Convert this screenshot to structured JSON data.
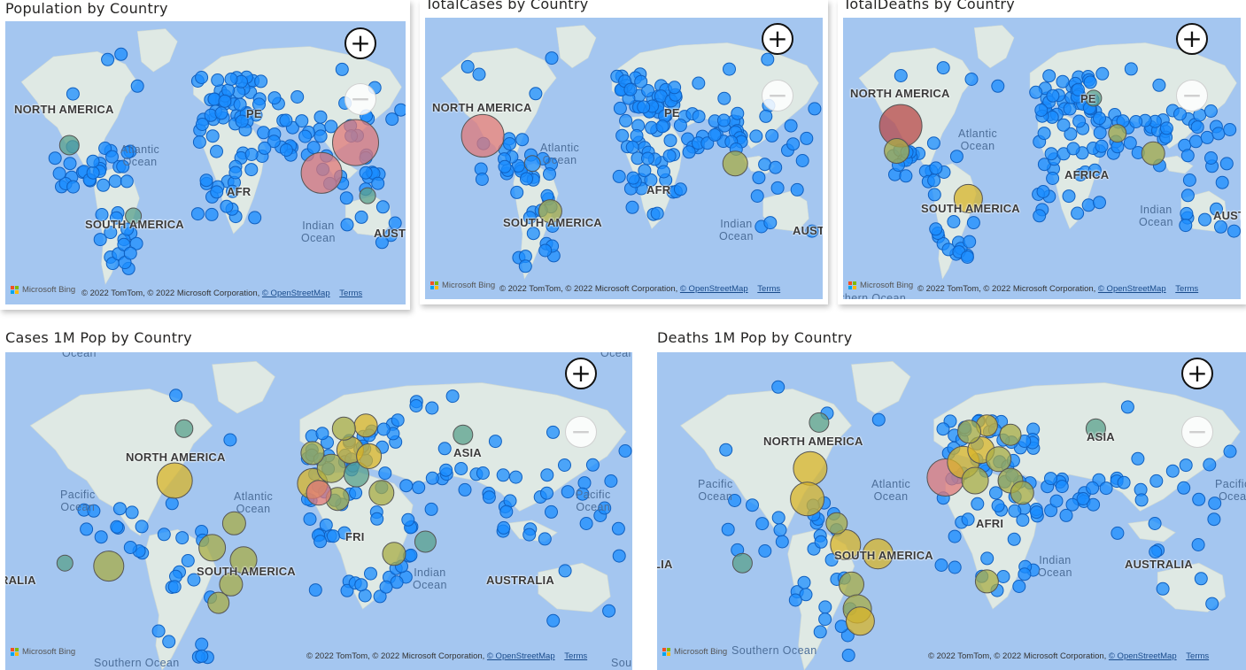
{
  "attribution": {
    "bing": "Microsoft Bing",
    "copyright": "© 2022 TomTom, © 2022 Microsoft Corporation,",
    "osm": "© OpenStreetMap",
    "terms": "Terms"
  },
  "colors": {
    "blue": "#1a8cff",
    "teal": "#5aa08c",
    "olive": "#a8ac46",
    "yellow": "#d8b428",
    "red": "#e07878",
    "darkred": "#b84848",
    "land": "#dfe9e4",
    "water": "#a4c6f0"
  },
  "icons": {
    "zoom_in": "plus-icon",
    "zoom_out": "minus-icon",
    "logo": "microsoft-logo-icon"
  },
  "zoom": {
    "in": "+",
    "out": "−"
  },
  "visuals": [
    {
      "key": "population",
      "title": "Population by Country",
      "labels": {
        "na": "NORTH AMERICA",
        "sa": "SOUTH AMERICA",
        "af": "AFR",
        "eu": "PE",
        "au": "AUST",
        "atlantic": "Atlantic\nOcean",
        "indian": "Indian\nOcean"
      }
    },
    {
      "key": "totalcases",
      "title": "TotalCases by Country",
      "labels": {
        "na": "NORTH AMERICA",
        "sa": "SOUTH AMERICA",
        "af": "AFR",
        "eu": "PE",
        "au": "AUST",
        "atlantic": "Atlantic\nOcean",
        "indian": "Indian\nOcean"
      }
    },
    {
      "key": "totaldeaths",
      "title": "TotalDeaths by Country",
      "labels": {
        "na": "NORTH AMERICA",
        "sa": "SOUTH AMERICA",
        "af": "AFRICA",
        "eu": "PE",
        "au": "AUST",
        "atlantic": "Atlantic\nOcean",
        "indian": "Indian\nOcean",
        "extra": "thern Ocean"
      }
    },
    {
      "key": "cases1m",
      "title": "Cases 1M Pop by Country",
      "labels": {
        "na": "NORTH AMERICA",
        "sa": "SOUTH AMERICA",
        "af": "FRI",
        "asia": "ASIA",
        "au": "AUSTRALIA",
        "ia": "RALIA",
        "atlantic": "Atlantic\nOcean",
        "indian": "Indian\nOcean",
        "pacific_l": "Pacific\nOcean",
        "pacific_r": "Pacific\nOcean",
        "southern": "Southern Ocean",
        "top": "Ocean",
        "topr": "Ocean",
        "sou": "Sou"
      }
    },
    {
      "key": "deaths1m",
      "title": "Deaths 1M Pop by Country",
      "labels": {
        "na": "NORTH AMERICA",
        "sa": "SOUTH AMERICA",
        "af": "AFRI",
        "asia": "ASIA",
        "au": "AUSTRALIA",
        "ia": "LIA",
        "atlantic": "Atlantic\nOcean",
        "indian": "Indian\nOcean",
        "pacific_l": "Pacific\nOcean",
        "pacific_r": "Pacific\nOcea",
        "southern": "Southern Ocean"
      }
    }
  ]
}
